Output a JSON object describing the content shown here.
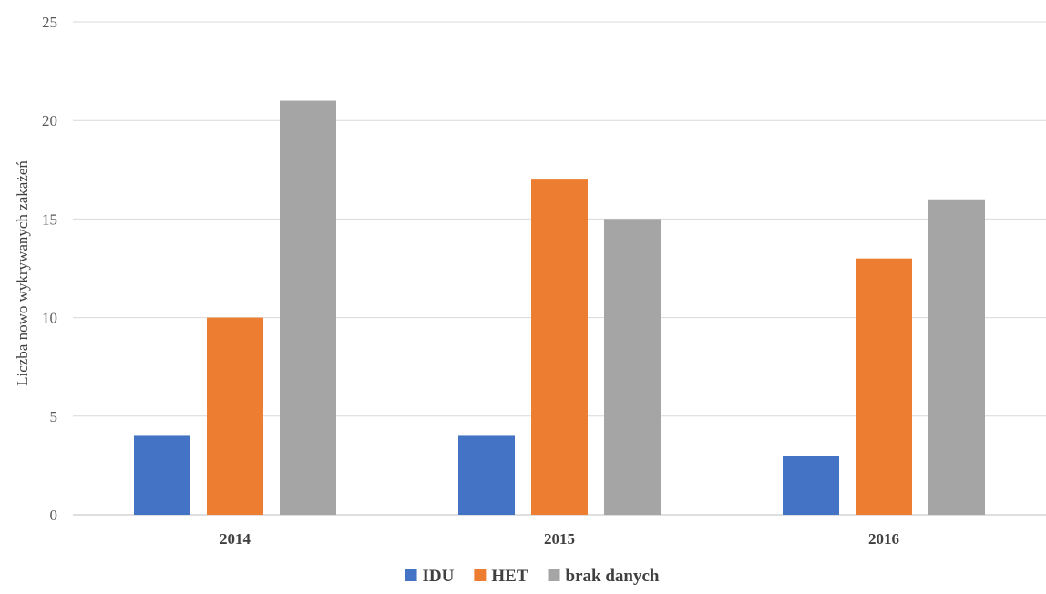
{
  "chart_data": {
    "type": "bar",
    "categories": [
      "2014",
      "2015",
      "2016"
    ],
    "series": [
      {
        "name": "IDU",
        "values": [
          4,
          4,
          3
        ],
        "color": "#4472c4"
      },
      {
        "name": "HET",
        "values": [
          10,
          17,
          13
        ],
        "color": "#ed7d31"
      },
      {
        "name": "brak danych",
        "values": [
          21,
          15,
          16
        ],
        "color": "#a5a5a5"
      }
    ],
    "title": "",
    "xlabel": "",
    "ylabel": "Liczba nowo wykrywanych zakażeń",
    "ylim": [
      0,
      25
    ],
    "yticks": [
      0,
      5,
      10,
      15,
      20,
      25
    ],
    "grid": true,
    "legend_position": "bottom"
  }
}
